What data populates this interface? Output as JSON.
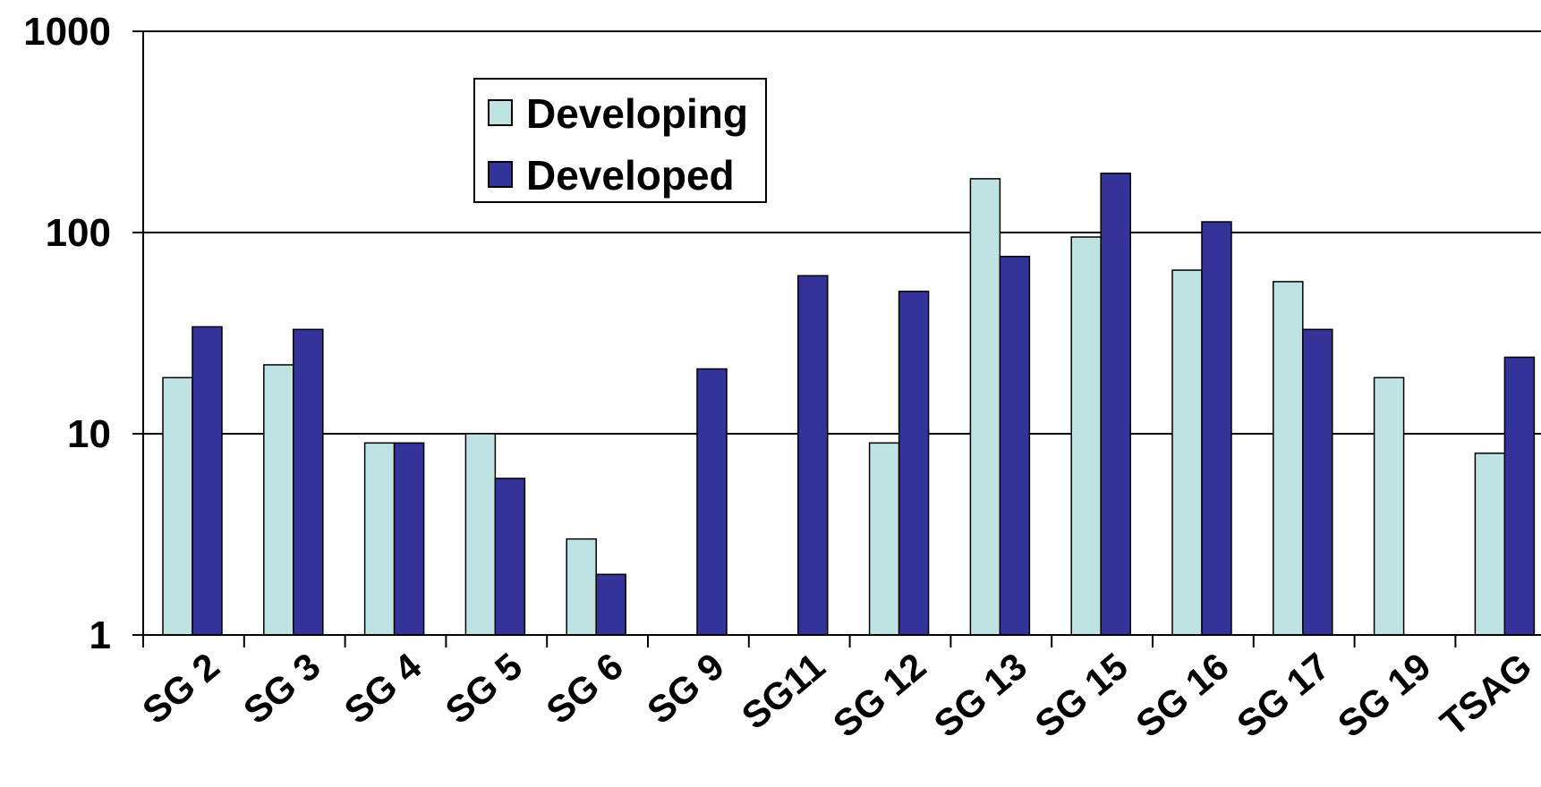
{
  "chart_data": {
    "type": "bar",
    "y_scale": "log",
    "ylim": [
      1,
      1000
    ],
    "y_ticks": [
      "1",
      "10",
      "100",
      "1000"
    ],
    "grid": "horizontal",
    "legend_position": "top-left",
    "categories": [
      "SG 2",
      "SG 3",
      "SG 4",
      "SG 5",
      "SG 6",
      "SG 9",
      "SG11",
      "SG 12",
      "SG 13",
      "SG 15",
      "SG 16",
      "SG 17",
      "SG 19",
      "TSAG"
    ],
    "series": [
      {
        "name": "Developing",
        "color": "#bfe3e3",
        "values": [
          19,
          22,
          9,
          10,
          3,
          null,
          null,
          9,
          185,
          95,
          65,
          57,
          19,
          8
        ]
      },
      {
        "name": "Developed",
        "color": "#333399",
        "values": [
          34,
          33,
          9,
          6,
          2,
          21,
          61,
          51,
          null,
          197,
          113,
          33,
          null,
          24
        ]
      }
    ],
    "extra_series_values": {
      "SG 13_developed": 76
    }
  }
}
